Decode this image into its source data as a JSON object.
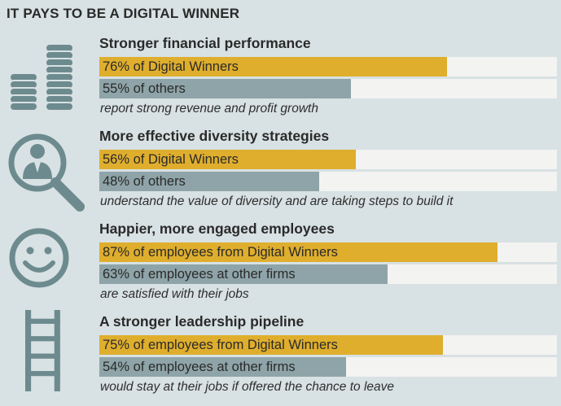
{
  "title": "IT PAYS TO BE A DIGITAL WINNER",
  "colors": {
    "winner": "#dfae2d",
    "other": "#8ea4a8",
    "track": "#f3f3f1",
    "background": "#d8e1e3",
    "icon": "#6d8b8f"
  },
  "chart_data": {
    "type": "bar",
    "title": "IT PAYS TO BE A DIGITAL WINNER",
    "ylim": [
      0,
      100
    ],
    "groups": [
      {
        "icon": "coins-stack-icon",
        "heading": "Stronger financial performance",
        "winner": {
          "label": "76% of Digital Winners",
          "value": 76
        },
        "other": {
          "label": "55% of others",
          "value": 55
        },
        "note": "report strong revenue and profit growth"
      },
      {
        "icon": "person-magnifier-icon",
        "heading": "More effective diversity strategies",
        "winner": {
          "label": "56% of Digital Winners",
          "value": 56
        },
        "other": {
          "label": "48% of others",
          "value": 48
        },
        "note": "understand the value of diversity and are taking steps to build it"
      },
      {
        "icon": "smiley-face-icon",
        "heading": "Happier, more engaged employees",
        "winner": {
          "label": "87% of employees from Digital Winners",
          "value": 87
        },
        "other": {
          "label": "63% of employees at other firms",
          "value": 63
        },
        "note": "are satisfied with their jobs"
      },
      {
        "icon": "ladder-icon",
        "heading": "A stronger leadership pipeline",
        "winner": {
          "label": "75% of employees from Digital Winners",
          "value": 75
        },
        "other": {
          "label": "54% of employees at other firms",
          "value": 54
        },
        "note": "would stay at their jobs if offered the chance to leave"
      }
    ]
  }
}
